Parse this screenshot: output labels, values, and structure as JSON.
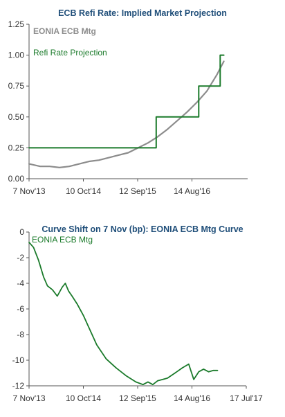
{
  "chart_data": [
    {
      "type": "line",
      "title": "ECB Refi Rate: Implied Market Projection",
      "xlabel": "",
      "ylabel": "",
      "ylim": [
        0,
        1.25
      ],
      "yticks": [
        "0.00",
        "0.25",
        "0.50",
        "0.75",
        "1.00",
        "1.25"
      ],
      "xticks": [
        "7 Nov'13",
        "10 Oct'14",
        "12 Sep'15",
        "14 Aug'16"
      ],
      "legend": "top-left",
      "grid": false,
      "colors": {
        "EONIA ECB Mtg": "#8c8c8c",
        "Refi Rate Projection": "#1a7a2a"
      },
      "series": [
        {
          "name": "EONIA ECB Mtg",
          "x": [
            "2013-11-07",
            "2014-01-15",
            "2014-03-15",
            "2014-05-15",
            "2014-07-15",
            "2014-09-15",
            "2014-11-15",
            "2015-01-15",
            "2015-03-15",
            "2015-05-15",
            "2015-07-15",
            "2015-09-15",
            "2015-11-15",
            "2016-01-15",
            "2016-03-15",
            "2016-05-15",
            "2016-07-15",
            "2016-09-15",
            "2016-11-15",
            "2017-01-15",
            "2017-02-28"
          ],
          "values": [
            0.12,
            0.1,
            0.1,
            0.09,
            0.1,
            0.12,
            0.14,
            0.15,
            0.17,
            0.19,
            0.21,
            0.25,
            0.29,
            0.34,
            0.4,
            0.47,
            0.54,
            0.62,
            0.71,
            0.84,
            0.95
          ]
        },
        {
          "name": "Refi Rate Projection",
          "step": true,
          "x": [
            "2013-11-07",
            "2016-01-05",
            "2016-04-20",
            "2016-09-25",
            "2017-02-05",
            "2017-02-28"
          ],
          "values": [
            0.25,
            0.5,
            0.5,
            0.75,
            1.0,
            1.0
          ]
        }
      ]
    },
    {
      "type": "line",
      "title": "Curve Shift on 7 Nov (bp): EONIA ECB Mtg Curve",
      "xlabel": "",
      "ylabel": "",
      "ylim": [
        -12,
        0
      ],
      "yticks": [
        "-12",
        "-10",
        "-8",
        "-6",
        "-4",
        "-2",
        "0"
      ],
      "xticks": [
        "7 Nov'13",
        "10 Oct'14",
        "12 Sep'15",
        "14 Aug'16",
        "17 Jul'17"
      ],
      "legend": "top-left",
      "grid": false,
      "colors": {
        "EONIA ECB Mtg": "#1a7a2a"
      },
      "series": [
        {
          "name": "EONIA ECB Mtg",
          "x": [
            "2013-11-07",
            "2013-12-05",
            "2014-01-05",
            "2014-02-05",
            "2014-03-01",
            "2014-04-01",
            "2014-05-01",
            "2014-06-01",
            "2014-06-20",
            "2014-07-10",
            "2014-08-01",
            "2014-09-01",
            "2014-10-10",
            "2014-11-15",
            "2015-01-01",
            "2015-03-01",
            "2015-05-01",
            "2015-07-01",
            "2015-09-01",
            "2015-10-15",
            "2015-11-15",
            "2015-12-15",
            "2016-01-15",
            "2016-02-15",
            "2016-03-15",
            "2016-05-01",
            "2016-06-15",
            "2016-07-25",
            "2016-08-25",
            "2016-09-25",
            "2016-10-25",
            "2016-11-25",
            "2016-12-25",
            "2017-01-20"
          ],
          "values": [
            -0.8,
            -1.2,
            -2.2,
            -3.5,
            -4.2,
            -4.5,
            -5.0,
            -4.3,
            -4.0,
            -4.6,
            -5.0,
            -5.6,
            -6.5,
            -7.5,
            -8.8,
            -9.9,
            -10.6,
            -11.2,
            -11.7,
            -11.9,
            -11.7,
            -11.9,
            -11.6,
            -11.5,
            -11.4,
            -11.0,
            -10.6,
            -10.3,
            -11.5,
            -10.9,
            -10.7,
            -10.9,
            -10.8,
            -10.8
          ]
        }
      ]
    }
  ]
}
